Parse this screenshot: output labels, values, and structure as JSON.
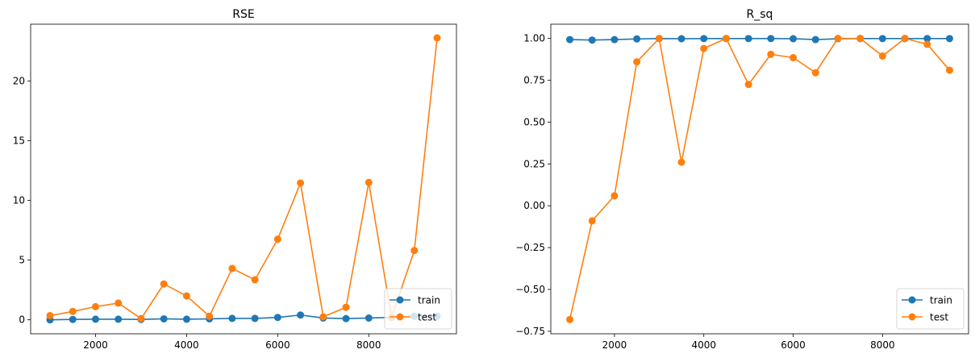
{
  "colors": {
    "train": "#1f77b4",
    "test": "#ff7f0e"
  },
  "chart_data": [
    {
      "type": "line",
      "title": "RSE",
      "xlabel": "",
      "ylabel": "",
      "x": [
        1000,
        1500,
        2000,
        2500,
        3000,
        3500,
        4000,
        4500,
        5000,
        5500,
        6000,
        6500,
        7000,
        7500,
        8000,
        8500,
        9000,
        9500
      ],
      "xlim": [
        575,
        9925
      ],
      "ylim": [
        -1.17,
        24.75
      ],
      "xticks": [
        2000,
        4000,
        6000,
        8000
      ],
      "yticks": [
        0,
        5,
        10,
        15,
        20
      ],
      "legend": "lower right",
      "grid": false,
      "series": [
        {
          "name": "train",
          "color_key": "train",
          "values": [
            0.0,
            0.03,
            0.05,
            0.05,
            0.03,
            0.08,
            0.05,
            0.08,
            0.12,
            0.12,
            0.2,
            0.4,
            0.15,
            0.1,
            0.15,
            0.2,
            0.3,
            0.3
          ]
        },
        {
          "name": "test",
          "color_key": "test",
          "values": [
            0.35,
            0.7,
            1.1,
            1.4,
            0.1,
            3.0,
            2.0,
            0.3,
            4.3,
            3.35,
            6.75,
            11.45,
            0.25,
            1.05,
            11.5,
            0.2,
            5.8,
            23.6
          ]
        }
      ]
    },
    {
      "type": "line",
      "title": "R_sq",
      "xlabel": "",
      "ylabel": "",
      "x": [
        1000,
        1500,
        2000,
        2500,
        3000,
        3500,
        4000,
        4500,
        5000,
        5500,
        6000,
        6500,
        7000,
        7500,
        8000,
        8500,
        9000,
        9500
      ],
      "xlim": [
        575,
        9925
      ],
      "ylim": [
        -0.765,
        1.085
      ],
      "xticks": [
        2000,
        4000,
        6000,
        8000
      ],
      "yticks": [
        -0.75,
        -0.5,
        -0.25,
        0.0,
        0.25,
        0.5,
        0.75,
        1.0
      ],
      "ytick_labels": [
        "−0.75",
        "−0.50",
        "−0.25",
        "0.00",
        "0.25",
        "0.50",
        "0.75",
        "1.00"
      ],
      "legend": "lower right",
      "grid": false,
      "series": [
        {
          "name": "train",
          "color_key": "train",
          "values": [
            0.993,
            0.99,
            0.993,
            0.997,
            0.999,
            0.998,
            0.999,
            0.999,
            0.999,
            0.999,
            0.998,
            0.993,
            0.998,
            0.999,
            0.999,
            0.999,
            0.999,
            0.999
          ]
        },
        {
          "name": "test",
          "color_key": "test",
          "values": [
            -0.68,
            -0.09,
            0.06,
            0.86,
            1.0,
            0.26,
            0.94,
            1.0,
            0.725,
            0.905,
            0.885,
            0.795,
            1.0,
            1.0,
            0.895,
            1.0,
            0.965,
            0.81
          ]
        }
      ]
    }
  ]
}
